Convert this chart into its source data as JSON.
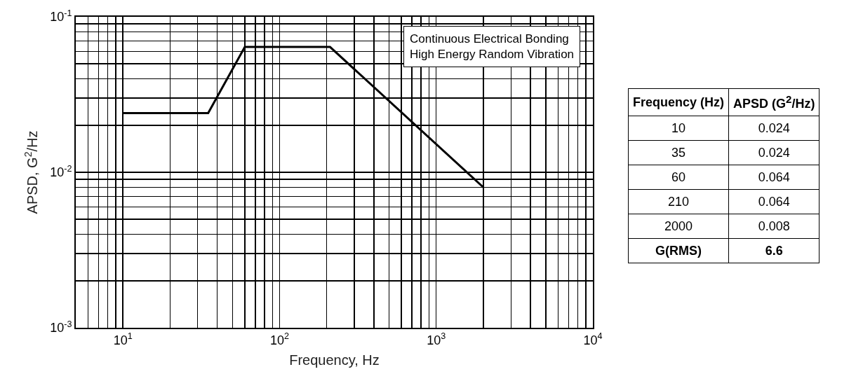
{
  "chart_data": {
    "type": "line",
    "xlabel": "Frequency, Hz",
    "ylabel": "APSD, G$^{2}$/Hz",
    "log": "xy",
    "grid": true,
    "marker": "none",
    "line_style": "solid",
    "x": [
      10,
      35,
      60,
      210,
      2000
    ],
    "series": [
      {
        "color": "#000000",
        "values": [
          0.024,
          0.024,
          0.064,
          0.064,
          0.008
        ]
      }
    ],
    "xlim": [
      5,
      10000
    ],
    "xticks": [
      {
        "value": 5,
        "label": null
      },
      {
        "value": 6,
        "label": null
      },
      {
        "value": 7,
        "label": null
      },
      {
        "value": 8,
        "label": null
      },
      {
        "value": 9,
        "label": null
      },
      {
        "value": 10,
        "label": "10$^{1}$"
      },
      {
        "value": 20,
        "label": null
      },
      {
        "value": 30,
        "label": null
      },
      {
        "value": 40,
        "label": null
      },
      {
        "value": 50,
        "label": null
      },
      {
        "value": 60,
        "label": null
      },
      {
        "value": 70,
        "label": null
      },
      {
        "value": 80,
        "label": null
      },
      {
        "value": 90,
        "label": null
      },
      {
        "value": 100,
        "label": "10$^{2}$"
      },
      {
        "value": 200,
        "label": null
      },
      {
        "value": 300,
        "label": null
      },
      {
        "value": 400,
        "label": null
      },
      {
        "value": 500,
        "label": null
      },
      {
        "value": 600,
        "label": null
      },
      {
        "value": 700,
        "label": null
      },
      {
        "value": 800,
        "label": null
      },
      {
        "value": 900,
        "label": null
      },
      {
        "value": 1000,
        "label": "10$^{3}$"
      },
      {
        "value": 2000,
        "label": null
      },
      {
        "value": 3000,
        "label": null
      },
      {
        "value": 4000,
        "label": null
      },
      {
        "value": 5000,
        "label": null
      },
      {
        "value": 6000,
        "label": null
      },
      {
        "value": 7000,
        "label": null
      },
      {
        "value": 8000,
        "label": null
      },
      {
        "value": 9000,
        "label": null
      },
      {
        "value": 10000,
        "label": "10$^{4}$"
      }
    ],
    "ylim": [
      0.001,
      0.1
    ],
    "yticks": [
      {
        "value": 0.001,
        "label": "10$^{-3}$"
      },
      {
        "value": 0.002,
        "label": null
      },
      {
        "value": 0.003,
        "label": null
      },
      {
        "value": 0.004,
        "label": null
      },
      {
        "value": 0.005,
        "label": null
      },
      {
        "value": 0.006,
        "label": null
      },
      {
        "value": 0.007,
        "label": null
      },
      {
        "value": 0.008,
        "label": null
      },
      {
        "value": 0.009,
        "label": null
      },
      {
        "value": 0.01,
        "label": "10$^{-2}$"
      },
      {
        "value": 0.02,
        "label": null
      },
      {
        "value": 0.03,
        "label": null
      },
      {
        "value": 0.04,
        "label": null
      },
      {
        "value": 0.05,
        "label": null
      },
      {
        "value": 0.06,
        "label": null
      },
      {
        "value": 0.07,
        "label": null
      },
      {
        "value": 0.08,
        "label": null
      },
      {
        "value": 0.09,
        "label": null
      },
      {
        "value": 0.1,
        "label": "10$^{-1}$"
      }
    ],
    "annotations": [
      "Continuous Electrical Bonding\nHigh Energy Random Vibration",
      "Frequency (Hz)",
      "APSD (G$^{2}$/Hz)",
      "10",
      "0.024",
      "35",
      "0.024",
      "60",
      "0.064",
      "210",
      "0.064",
      "2000",
      "0.008",
      "G(RMS)",
      "6.6"
    ]
  }
}
